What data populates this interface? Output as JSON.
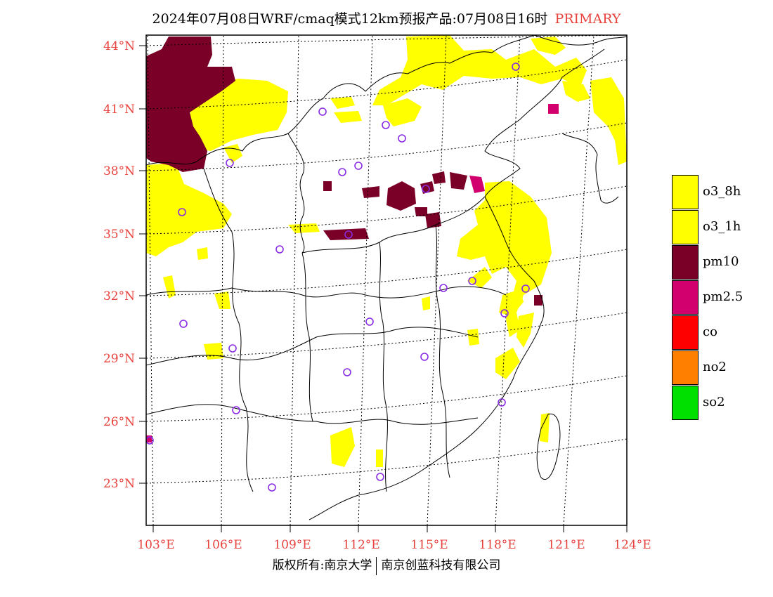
{
  "title": {
    "text": "2024年07月08日WRF/cmaq模式12km预报产品:07月08日16时",
    "product": "PRIMARY"
  },
  "lat_labels": [
    "44°N",
    "41°N",
    "38°N",
    "35°N",
    "32°N",
    "29°N",
    "26°N",
    "23°N"
  ],
  "lon_labels": [
    "103°E",
    "106°E",
    "109°E",
    "112°E",
    "115°E",
    "118°E",
    "121°E",
    "124°E"
  ],
  "legend": {
    "items": [
      {
        "label": "o3_8h",
        "color": "#ffff00"
      },
      {
        "label": "o3_1h",
        "color": "#ffff00"
      },
      {
        "label": "pm10",
        "color": "#7b0028"
      },
      {
        "label": "pm2.5",
        "color": "#d2006e"
      },
      {
        "label": "co",
        "color": "#ff0000"
      },
      {
        "label": "no2",
        "color": "#ff8000"
      },
      {
        "label": "so2",
        "color": "#00e000"
      }
    ]
  },
  "footer": {
    "left": "版权所有:南京大学",
    "right": "南京创蓝科技有限公司"
  },
  "colors": {
    "o3": "#ffff00",
    "pm10": "#7b0028",
    "pm25": "#d2006e",
    "station": "#8a2be2",
    "accent": "#e8423c"
  }
}
